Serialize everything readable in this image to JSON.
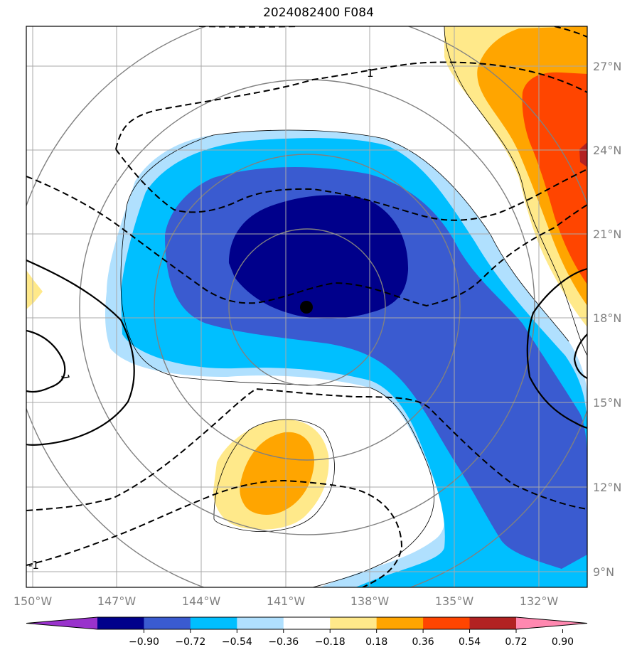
{
  "title": "2024082400 F084",
  "map": {
    "lon_labels": [
      "150°W",
      "147°W",
      "144°W",
      "141°W",
      "138°W",
      "135°W",
      "132°W"
    ],
    "lat_labels": [
      "27°N",
      "24°N",
      "21°N",
      "18°N",
      "15°N",
      "12°N",
      "9°N"
    ],
    "contour_labels": [
      "1",
      "1",
      "-1"
    ],
    "storm_center": {
      "lon": -140.3,
      "lat": 18.4
    }
  },
  "colorbar": {
    "labels": [
      "−0.90",
      "−0.72",
      "−0.54",
      "−0.36",
      "−0.18",
      "0.18",
      "0.36",
      "0.54",
      "0.72",
      "0.90"
    ],
    "colors": [
      "#9932cc",
      "#00008b",
      "#3a5bd0",
      "#00bfff",
      "#b0e0fe",
      "#ffffff",
      "#ffe98a",
      "#ffa500",
      "#ff4500",
      "#b22222",
      "#ff88b0"
    ]
  },
  "colors": {
    "dark_blue": "#00008b",
    "royal_blue": "#3a5bd0",
    "deep_sky": "#00bfff",
    "light_blue": "#b0e0fe",
    "light_yellow": "#ffe98a",
    "orange": "#ffa500",
    "red_orange": "#ff4500",
    "dark_red": "#b22222"
  }
}
